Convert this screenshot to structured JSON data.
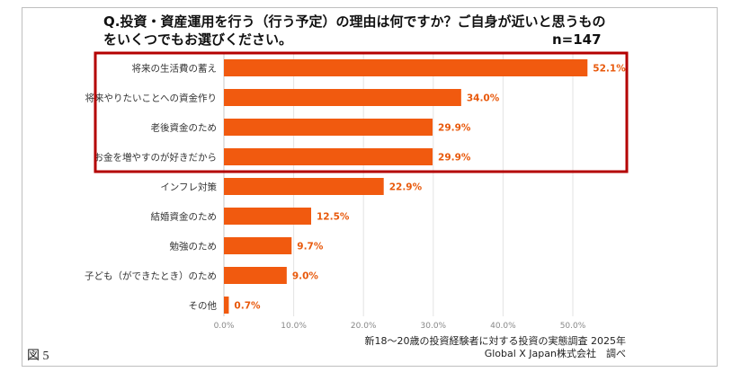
{
  "title": "Q.投資・資産運用を行う（行う予定）の理由は何ですか？ご自身が近いと思うものをいくつでもお選びください。",
  "sample": "n=147",
  "figure_label": "図 5",
  "source": {
    "line1": "新18～20歳の投資経験者に対する投資の実態調査 2025年",
    "line2": "Global X Japan株式会社　調べ"
  },
  "colors": {
    "bar": "#f15a0f",
    "highlight": "#b40000",
    "value_text": "#e8590c"
  },
  "chart_data": {
    "type": "bar",
    "orientation": "horizontal",
    "categories": [
      "将来の生活費の蓄え",
      "将来やりたいことへの資金作り",
      "老後資金のため",
      "お金を増やすのが好きだから",
      "インフレ対策",
      "結婚資金のため",
      "勉強のため",
      "子ども（ができたとき）のため",
      "その他"
    ],
    "values": [
      52.1,
      34.0,
      29.9,
      29.9,
      22.9,
      12.5,
      9.7,
      9.0,
      0.7
    ],
    "value_labels": [
      "52.1%",
      "34.0%",
      "29.9%",
      "29.9%",
      "22.9%",
      "12.5%",
      "9.7%",
      "9.0%",
      "0.7%"
    ],
    "xlim": [
      0,
      55
    ],
    "xticks": [
      0,
      10,
      20,
      30,
      40,
      50
    ],
    "xtick_labels": [
      "0.0%",
      "10.0%",
      "20.0%",
      "30.0%",
      "40.0%",
      "50.0%"
    ],
    "highlighted_categories": [
      0,
      1,
      2,
      3
    ],
    "grid": true
  }
}
